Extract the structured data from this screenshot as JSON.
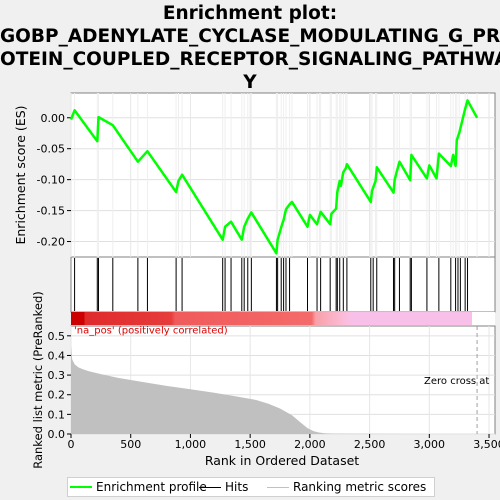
{
  "title_lines": [
    "Enrichment plot:",
    "GOBP_ADENYLATE_CYCLASE_MODULATING_G_PR",
    "OTEIN_COUPLED_RECEPTOR_SIGNALING_PATHWA",
    "Y"
  ],
  "colors": {
    "enrichment_line": "#00ff00",
    "hits": "#000000",
    "metric_fill": "#c0c0c0",
    "pos_label": "#dd0000",
    "panel_bg": "#ffffff",
    "page_bg": "#f0f0f0"
  },
  "chart_data": [
    {
      "type": "line",
      "name": "enrichment-profile",
      "ylabel": "Enrichment score (ES)",
      "xlim": [
        0,
        3550
      ],
      "ylim": [
        -0.225,
        0.04
      ],
      "yticks": [
        "0.00",
        "-0.05",
        "-0.10",
        "-0.15",
        "-0.20"
      ],
      "ytick_values": [
        0.0,
        -0.05,
        -0.1,
        -0.15,
        -0.2
      ],
      "grid": true,
      "x": [
        0,
        30,
        220,
        230,
        350,
        560,
        640,
        880,
        900,
        930,
        1270,
        1290,
        1340,
        1430,
        1450,
        1480,
        1510,
        1720,
        1730,
        1760,
        1780,
        1800,
        1830,
        1850,
        1980,
        2000,
        2060,
        2080,
        2090,
        2170,
        2180,
        2220,
        2230,
        2250,
        2260,
        2280,
        2300,
        2310,
        2510,
        2520,
        2550,
        2560,
        2700,
        2710,
        2730,
        2750,
        2840,
        2850,
        2980,
        3000,
        3060,
        3080,
        3180,
        3200,
        3220,
        3230,
        3250,
        3300,
        3320,
        3400
      ],
      "y": [
        -0.003,
        0.012,
        -0.038,
        0.001,
        -0.012,
        -0.071,
        -0.054,
        -0.12,
        -0.102,
        -0.092,
        -0.197,
        -0.176,
        -0.168,
        -0.197,
        -0.176,
        -0.163,
        -0.153,
        -0.219,
        -0.197,
        -0.177,
        -0.165,
        -0.148,
        -0.14,
        -0.136,
        -0.176,
        -0.157,
        -0.172,
        -0.159,
        -0.152,
        -0.172,
        -0.155,
        -0.147,
        -0.12,
        -0.102,
        -0.11,
        -0.088,
        -0.082,
        -0.075,
        -0.136,
        -0.118,
        -0.102,
        -0.08,
        -0.121,
        -0.1,
        -0.085,
        -0.071,
        -0.101,
        -0.06,
        -0.098,
        -0.077,
        -0.098,
        -0.058,
        -0.078,
        -0.06,
        -0.078,
        -0.036,
        -0.025,
        0.014,
        0.028,
        0.0
      ]
    },
    {
      "type": "hits",
      "name": "hits",
      "x": [
        30,
        220,
        230,
        350,
        560,
        640,
        880,
        930,
        1270,
        1290,
        1340,
        1430,
        1450,
        1480,
        1510,
        1720,
        1730,
        1760,
        1780,
        1800,
        1830,
        1980,
        2060,
        2090,
        2170,
        2220,
        2230,
        2250,
        2280,
        2310,
        2510,
        2530,
        2560,
        2700,
        2710,
        2750,
        2840,
        2850,
        2980,
        3080,
        3180,
        3220,
        3240,
        3260,
        3300,
        3320
      ]
    },
    {
      "type": "area",
      "name": "ranking-metric",
      "xlabel": "Rank in Ordered Dataset",
      "ylabel": "Ranked list metric (PreRanked)",
      "xlim": [
        0,
        3550
      ],
      "ylim": [
        0,
        0.55
      ],
      "xticks": [
        "0",
        "500",
        "1,000",
        "1,500",
        "2,000",
        "2,500",
        "3,000",
        "3,500"
      ],
      "xtick_values": [
        0,
        500,
        1000,
        1500,
        2000,
        2500,
        3000,
        3500
      ],
      "yticks": [
        "0.0",
        "0.1",
        "0.2",
        "0.3",
        "0.4",
        "0.5"
      ],
      "ytick_values": [
        0.0,
        0.1,
        0.2,
        0.3,
        0.4,
        0.5
      ],
      "x": [
        0,
        10,
        30,
        60,
        100,
        150,
        250,
        400,
        600,
        800,
        1000,
        1200,
        1400,
        1550,
        1650,
        1750,
        1850,
        1920,
        1980,
        2030,
        2070,
        2120,
        2200,
        2400,
        3000,
        3400
      ],
      "y": [
        0.45,
        0.38,
        0.355,
        0.34,
        0.33,
        0.32,
        0.305,
        0.285,
        0.265,
        0.245,
        0.228,
        0.21,
        0.19,
        0.173,
        0.155,
        0.13,
        0.095,
        0.06,
        0.03,
        0.015,
        0.008,
        0.004,
        0.002,
        0.001,
        0.0,
        0.0
      ],
      "pos_label": "'na_pos' (positively correlated)",
      "zero_cross_label": "Zero cross at",
      "zero_cross_x": 3400
    }
  ],
  "legend": {
    "enrichment": "Enrichment profile",
    "hits": "Hits",
    "metric": "Ranking metric scores"
  }
}
